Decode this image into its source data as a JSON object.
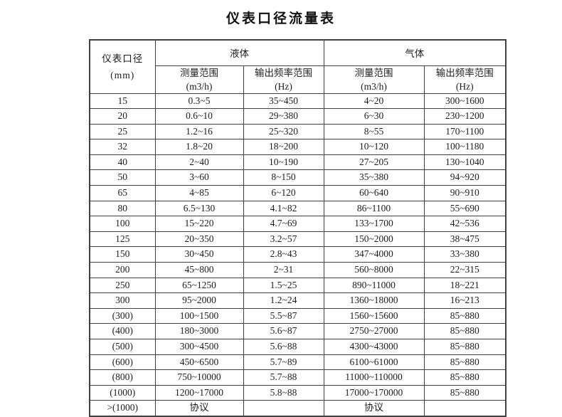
{
  "page": {
    "title": "仪表口径流量表"
  },
  "table_header": {
    "diameter_line1": "仪表口径",
    "diameter_line2": "(mm)",
    "liquid": "液体",
    "gas": "气体",
    "measure_line1": "测量范围",
    "measure_line2": "(m3/h)",
    "freq_line1": "输出频率范围",
    "freq_line2": "(Hz)"
  },
  "chart_data": {
    "type": "table",
    "title": "仪表口径流量表",
    "column_groups": [
      "仪表口径 (mm)",
      "液体",
      "液体",
      "气体",
      "气体"
    ],
    "columns": [
      "仪表口径 (mm)",
      "液体 测量范围 (m3/h)",
      "液体 输出频率范围 (Hz)",
      "气体 测量范围 (m3/h)",
      "气体 输出频率范围 (Hz)"
    ],
    "rows": [
      [
        "15",
        "0.3~5",
        "35~450",
        "4~20",
        "300~1600"
      ],
      [
        "20",
        "0.6~10",
        "29~380",
        "6~30",
        "230~1200"
      ],
      [
        "25",
        "1.2~16",
        "25~320",
        "8~55",
        "170~1100"
      ],
      [
        "32",
        "1.8~20",
        "18~200",
        "10~120",
        "100~1180"
      ],
      [
        "40",
        "2~40",
        "10~190",
        "27~205",
        "130~1040"
      ],
      [
        "50",
        "3~60",
        "8~150",
        "35~380",
        "94~920"
      ],
      [
        "65",
        "4~85",
        "6~120",
        "60~640",
        "90~910"
      ],
      [
        "80",
        "6.5~130",
        "4.1~82",
        "86~1100",
        "55~690"
      ],
      [
        "100",
        "15~220",
        "4.7~69",
        "133~1700",
        "42~536"
      ],
      [
        "125",
        "20~350",
        "3.2~57",
        "150~2000",
        "38~475"
      ],
      [
        "150",
        "30~450",
        "2.8~43",
        "347~4000",
        "33~380"
      ],
      [
        "200",
        "45~800",
        "2~31",
        "560~8000",
        "22~315"
      ],
      [
        "250",
        "65~1250",
        "1.5~25",
        "890~11000",
        "18~221"
      ],
      [
        "300",
        "95~2000",
        "1.2~24",
        "1360~18000",
        "16~213"
      ],
      [
        "(300)",
        "100~1500",
        "5.5~87",
        "1560~15600",
        "85~880"
      ],
      [
        "(400)",
        "180~3000",
        "5.6~87",
        "2750~27000",
        "85~880"
      ],
      [
        "(500)",
        "300~4500",
        "5.6~88",
        "4300~43000",
        "85~880"
      ],
      [
        "(600)",
        "450~6500",
        "5.7~89",
        "6100~61000",
        "85~880"
      ],
      [
        "(800)",
        "750~10000",
        "5.7~88",
        "11000~110000",
        "85~880"
      ],
      [
        "(1000)",
        "1200~17000",
        "5.8~88",
        "17000~170000",
        "85~880"
      ],
      [
        ">(1000)",
        "协议",
        "",
        "协议",
        ""
      ]
    ]
  }
}
